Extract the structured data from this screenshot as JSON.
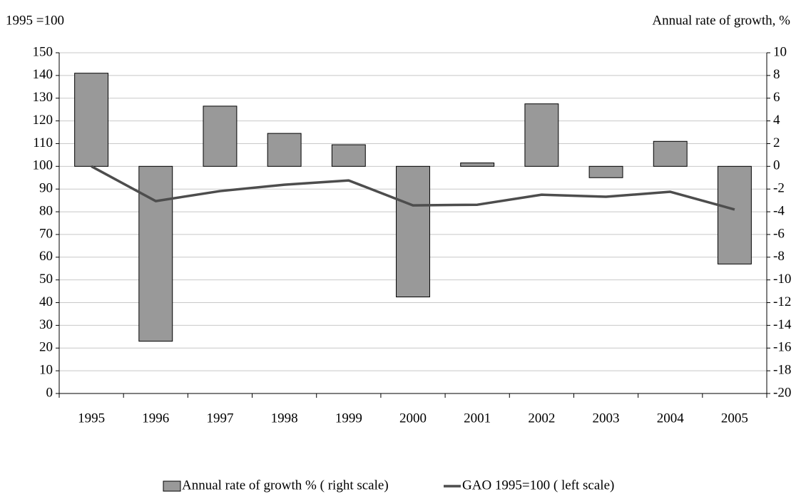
{
  "chart_data": {
    "type": "bar-line",
    "ylabel": "1995 =100",
    "y2label": "Annual rate of growth, %",
    "categories": [
      "1995",
      "1996",
      "1997",
      "1998",
      "1999",
      "2000",
      "2001",
      "2002",
      "2003",
      "2004",
      "2005"
    ],
    "series": [
      {
        "name": "Annual rate of growth % ( right scale)",
        "type": "bar",
        "axis": "y2",
        "color": "#999999",
        "values": [
          8.2,
          -15.4,
          5.3,
          2.9,
          1.9,
          -11.5,
          0.3,
          5.5,
          -1.0,
          2.2,
          -8.6
        ]
      },
      {
        "name": "GAO 1995=100 ( left scale)",
        "type": "line",
        "color": "#4d4d4d",
        "values": [
          100,
          84.7,
          89.1,
          91.9,
          93.8,
          82.8,
          83.1,
          87.5,
          86.6,
          88.8,
          81.0
        ]
      }
    ],
    "ylim": [
      0,
      150
    ],
    "yticks": [
      0,
      10,
      20,
      30,
      40,
      50,
      60,
      70,
      80,
      90,
      100,
      110,
      120,
      130,
      140,
      150
    ],
    "y2lim": [
      -20,
      10
    ],
    "y2ticks": [
      -20,
      -18,
      -16,
      -14,
      -12,
      -10,
      -8,
      -6,
      -4,
      -2,
      0,
      2,
      4,
      6,
      8,
      10
    ],
    "grid": true,
    "legend": "bottom"
  }
}
